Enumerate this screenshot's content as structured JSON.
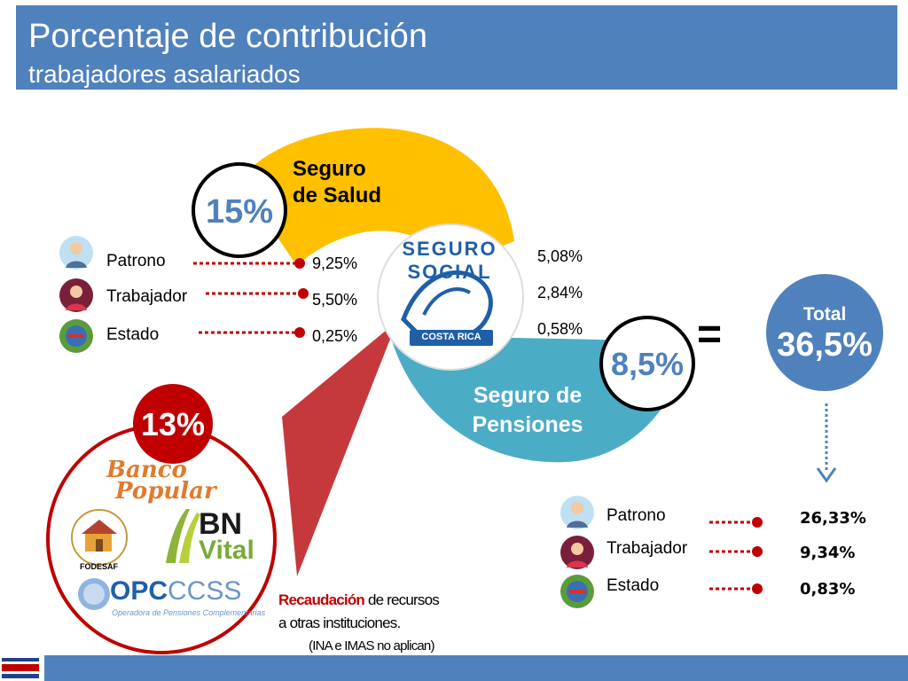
{
  "header": {
    "title": "Porcentaje de contribución",
    "subtitle": "trabajadores asalariados"
  },
  "salud": {
    "label_line1": "Seguro",
    "label_line2": "de Salud",
    "total": "15%",
    "values": [
      "9,25%",
      "5,50%",
      "0,25%"
    ]
  },
  "pensiones": {
    "label_line1": "Seguro de",
    "label_line2": "Pensiones",
    "total": "8,5%",
    "values": [
      "5,08%",
      "2,84%",
      "0,58%"
    ]
  },
  "contributors": [
    "Patrono",
    "Trabajador",
    "Estado"
  ],
  "logo_ccss": {
    "top_text": "SEGURO SOCIAL",
    "bottom_text": "COSTA RICA"
  },
  "equals": "=",
  "grand_total": {
    "label": "Total",
    "value": "36,5%"
  },
  "others": {
    "total": "13%",
    "logos": {
      "banco_popular_1": "Banco",
      "banco_popular_2": "Popular",
      "bn_1": "BN",
      "bn_2": "Vital",
      "fodesaf": "FODESAF",
      "opc": "OPC",
      "ccss": "CCSS",
      "opc_sub": "Operadora de Pensiones Complementarias"
    }
  },
  "note": {
    "emphasis": "Recaudación",
    "line1_rest": " de recursos",
    "line2": "a otras instituciones.",
    "line3": "(INA e IMAS no aplican)"
  },
  "result": {
    "labels": [
      "Patrono",
      "Trabajador",
      "Estado"
    ],
    "values": [
      "26,33%",
      "9,34%",
      "0,83%"
    ]
  },
  "colors": {
    "header": "#4f81bd",
    "salud": "#ffc000",
    "pensiones": "#4bacc6",
    "dotted": "#c00000",
    "others_circle": "#c00000",
    "total_circle": "#4f81bd"
  }
}
